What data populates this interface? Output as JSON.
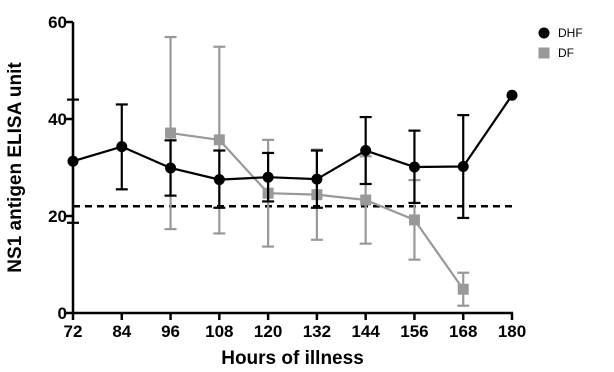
{
  "chart_data": {
    "type": "line",
    "title": "",
    "xlabel": "Hours of illness",
    "ylabel": "NS1 antigen ELISA unit",
    "x_ticks": [
      72,
      84,
      96,
      108,
      120,
      132,
      144,
      156,
      168,
      180
    ],
    "y_ticks": [
      0,
      20,
      40,
      60
    ],
    "xlim": [
      72,
      180
    ],
    "ylim": [
      0,
      60
    ],
    "grid": false,
    "legend_position": "top-right",
    "reference_line": {
      "y": 22,
      "style": "dashed",
      "color": "#000000"
    },
    "series": [
      {
        "name": "DHF",
        "color": "#000000",
        "marker": "circle",
        "points": [
          {
            "x": 72,
            "y": 31.3,
            "err_low": 18.6,
            "err_high": 44
          },
          {
            "x": 84,
            "y": 34.3,
            "err_low": 25.5,
            "err_high": 43
          },
          {
            "x": 96,
            "y": 29.9,
            "err_low": 24.2,
            "err_high": 35.6
          },
          {
            "x": 108,
            "y": 27.5,
            "err_low": 21.7,
            "err_high": 33.5
          },
          {
            "x": 120,
            "y": 28.0,
            "err_low": 23.0,
            "err_high": 33.0
          },
          {
            "x": 132,
            "y": 27.6,
            "err_low": 21.7,
            "err_high": 33.5
          },
          {
            "x": 144,
            "y": 33.5,
            "err_low": 26.6,
            "err_high": 40.4
          },
          {
            "x": 156,
            "y": 30.1,
            "err_low": 22.7,
            "err_high": 37.6
          },
          {
            "x": 168,
            "y": 30.2,
            "err_low": 19.6,
            "err_high": 40.8
          },
          {
            "x": 180,
            "y": 44.9,
            "err_low": 44.9,
            "err_high": 44.9
          }
        ]
      },
      {
        "name": "DF",
        "color": "#999999",
        "marker": "square",
        "points": [
          {
            "x": 96,
            "y": 37.1,
            "err_low": 17.3,
            "err_high": 56.9
          },
          {
            "x": 108,
            "y": 35.7,
            "err_low": 16.4,
            "err_high": 54.9
          },
          {
            "x": 120,
            "y": 24.7,
            "err_low": 13.7,
            "err_high": 35.7
          },
          {
            "x": 132,
            "y": 24.4,
            "err_low": 15.1,
            "err_high": 33.7
          },
          {
            "x": 144,
            "y": 23.3,
            "err_low": 14.3,
            "err_high": 32.3
          },
          {
            "x": 156,
            "y": 19.2,
            "err_low": 11.0,
            "err_high": 27.4
          },
          {
            "x": 168,
            "y": 4.9,
            "err_low": 1.5,
            "err_high": 8.3
          }
        ]
      }
    ]
  }
}
